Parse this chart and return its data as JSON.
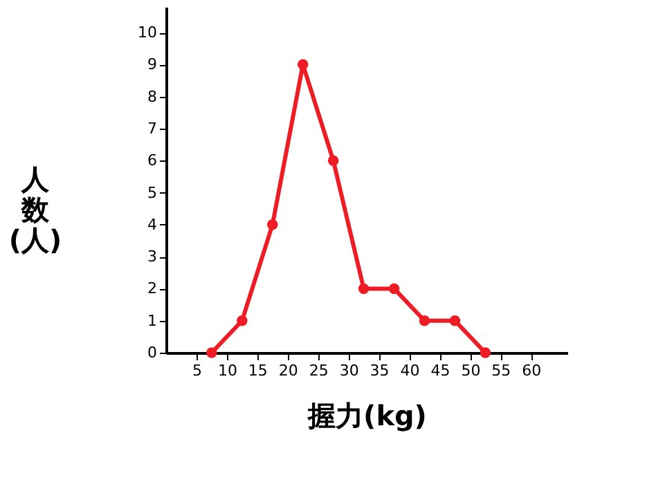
{
  "chart_data": {
    "type": "line",
    "xlabel": "握力(kg)",
    "ylabel": "人数(人)",
    "series": [
      {
        "color": "#ee1c25",
        "x": [
          7.5,
          12.5,
          17.5,
          22.5,
          27.5,
          32.5,
          37.5,
          42.5,
          47.5,
          52.5
        ],
        "values": [
          0,
          1,
          4,
          9,
          6,
          2,
          2,
          1,
          1,
          0
        ]
      }
    ],
    "xlim": [
      0,
      66
    ],
    "xticks": [
      5,
      10,
      15,
      20,
      25,
      30,
      35,
      40,
      45,
      50,
      55,
      60
    ],
    "ylim": [
      0,
      10.8
    ],
    "yticks": [
      0,
      1,
      2,
      3,
      4,
      5,
      6,
      7,
      8,
      9,
      10
    ],
    "marker": "circle",
    "line_style": "solid",
    "grid": false
  }
}
